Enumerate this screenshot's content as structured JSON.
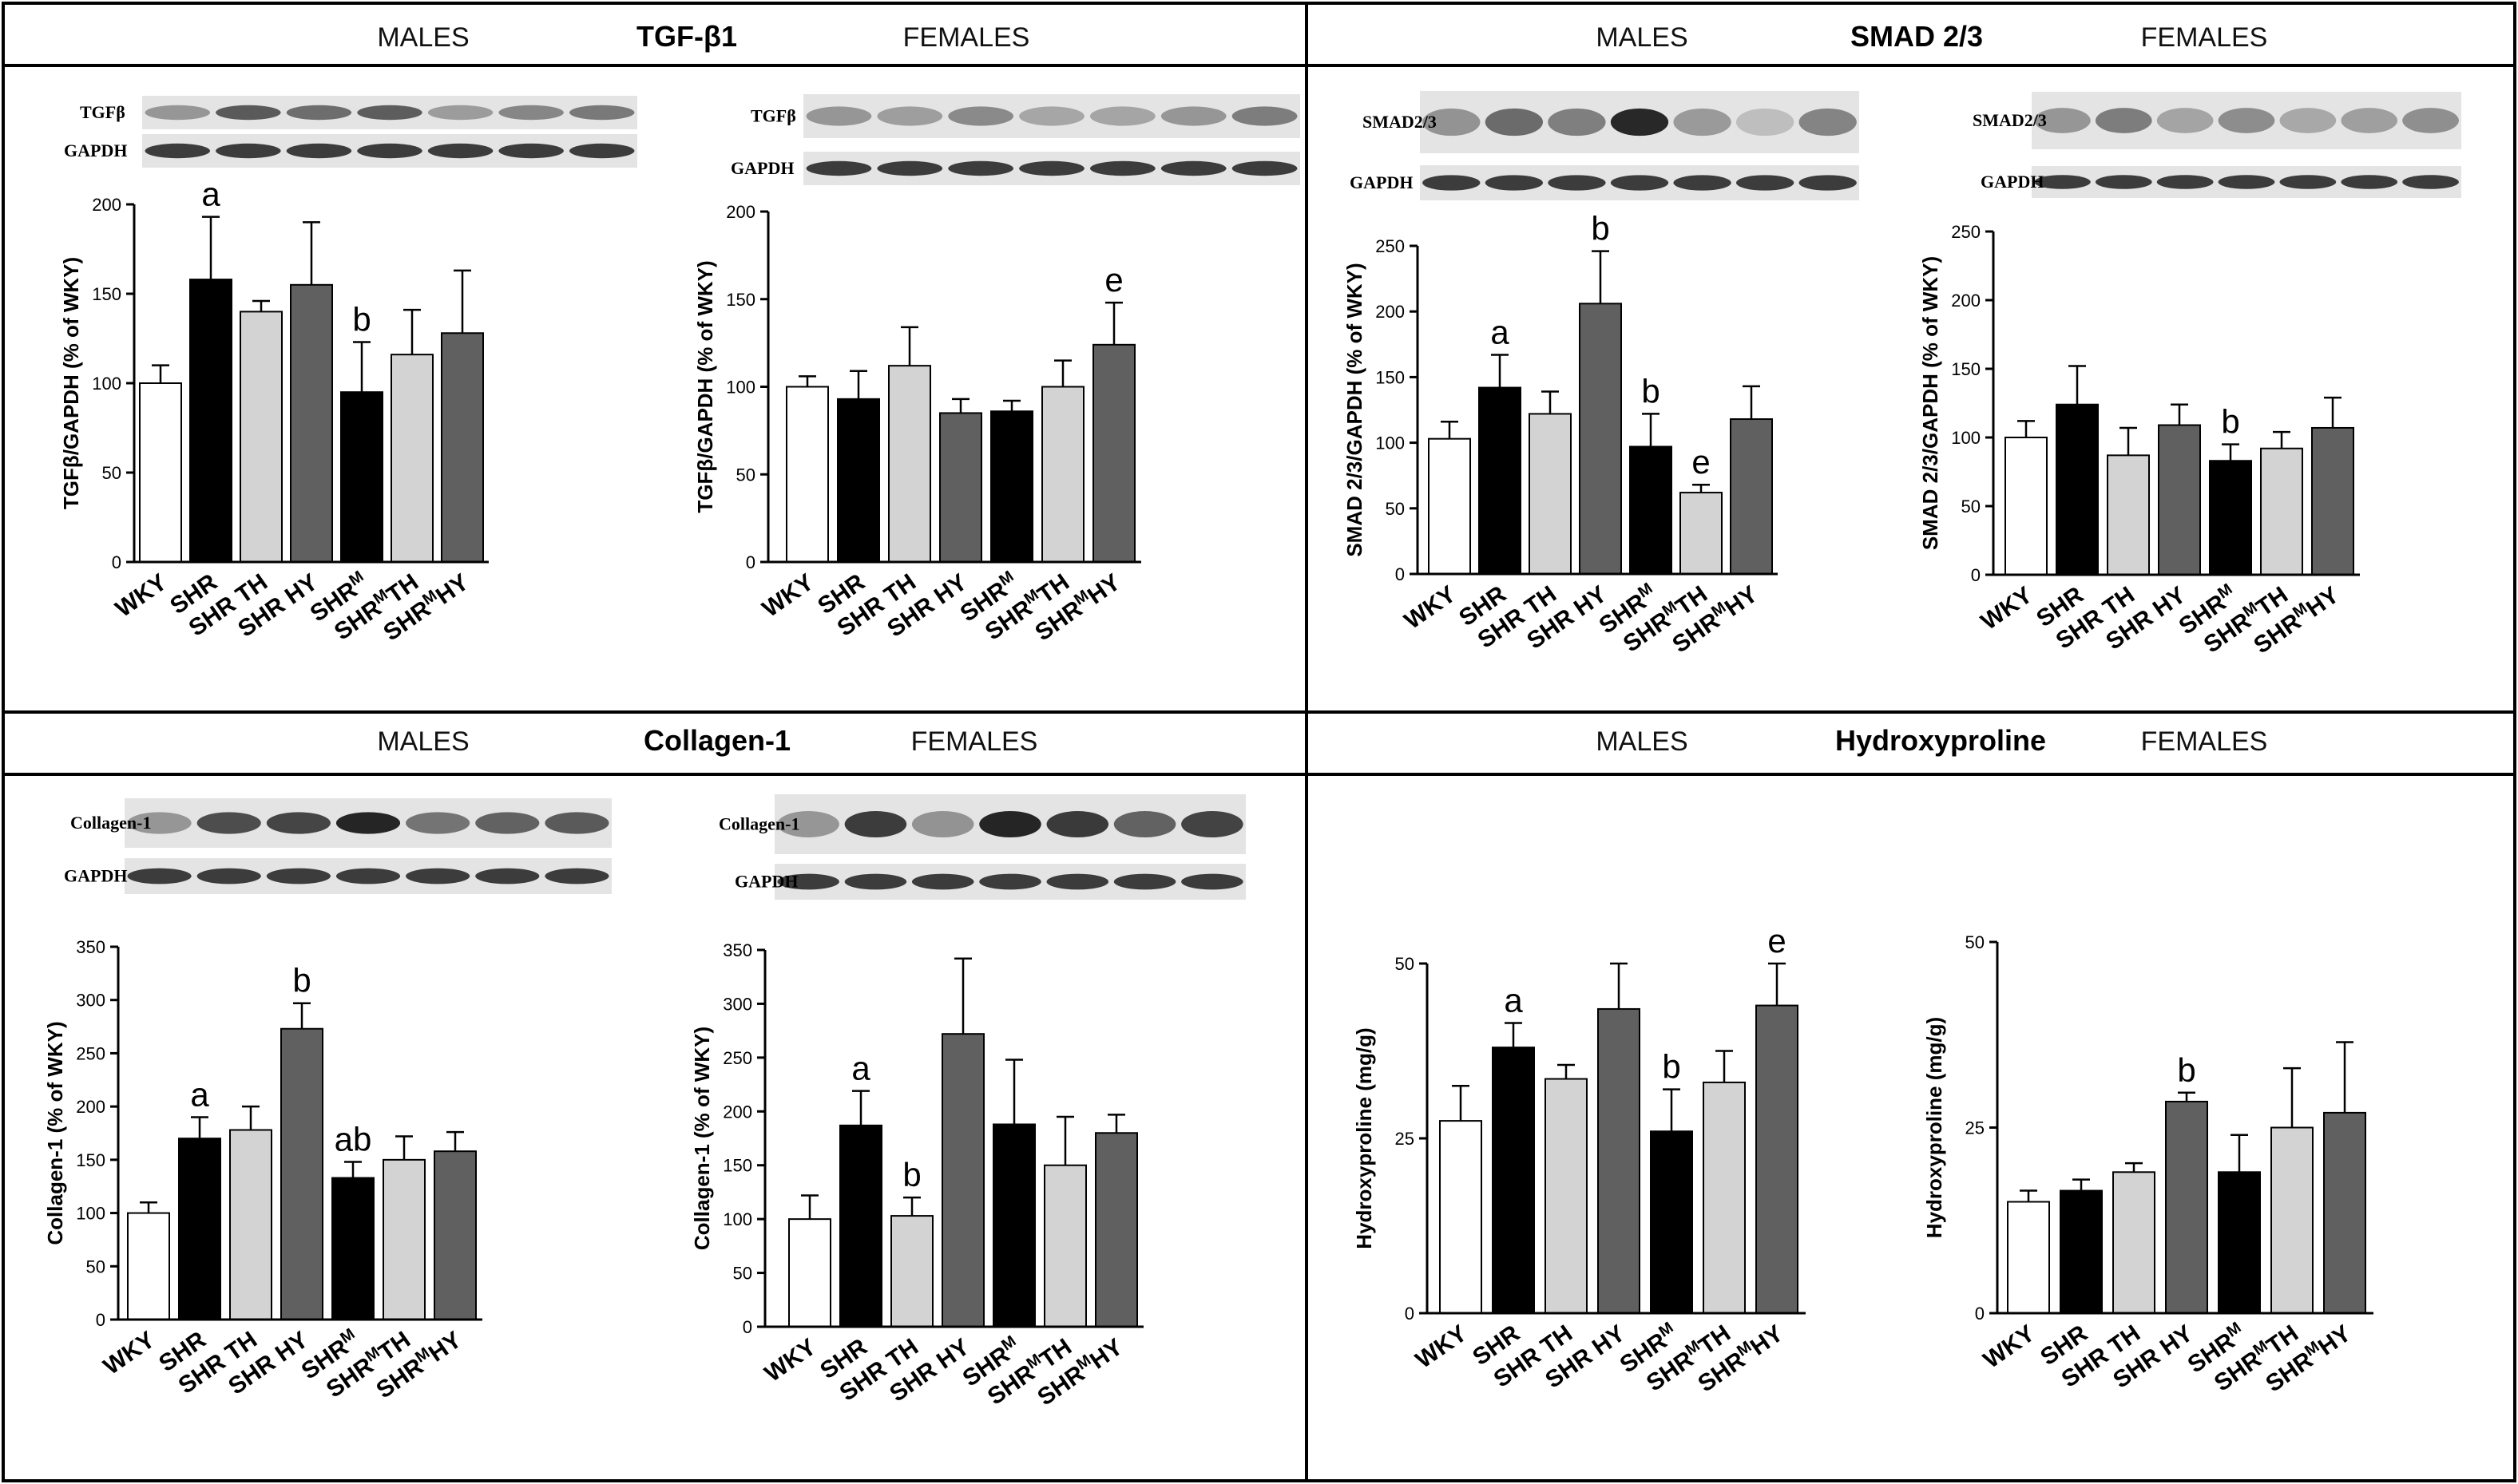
{
  "colors": {
    "WKY": "#ffffff",
    "SHR": "#000000",
    "SHR TH": "#d3d3d3",
    "SHR HY": "#606060",
    "SHRM": "#000000",
    "SHRMTH": "#d3d3d3",
    "SHRMHY": "#606060"
  },
  "panels": [
    {
      "title": "TGF-β1",
      "male_label": "MALES",
      "female_label": "FEMALES"
    },
    {
      "title": "SMAD 2/3",
      "male_label": "MALES",
      "female_label": "FEMALES"
    },
    {
      "title": "Collagen-1",
      "male_label": "MALES",
      "female_label": "FEMALES"
    },
    {
      "title": "Hydroxyproline",
      "male_label": "MALES",
      "female_label": "FEMALES"
    }
  ],
  "chart_data": [
    {
      "type": "bar",
      "panel": "TGF-β1",
      "sex": "MALES",
      "blot_labels": [
        "TGFβ",
        "GAPDH"
      ],
      "ylabel": "TGFβ/GAPDH (% of WKY)",
      "ylim": [
        0,
        200
      ],
      "yticks": [
        0,
        50,
        100,
        150,
        200
      ],
      "categories": [
        {
          "base": "WKY",
          "sup": "",
          "post": ""
        },
        {
          "base": "SHR",
          "sup": "",
          "post": ""
        },
        {
          "base": "SHR TH",
          "sup": "",
          "post": ""
        },
        {
          "base": "SHR HY",
          "sup": "",
          "post": ""
        },
        {
          "base": "SHR",
          "sup": "M",
          "post": ""
        },
        {
          "base": "SHR",
          "sup": "M",
          "post": "TH"
        },
        {
          "base": "SHR",
          "sup": "M",
          "post": "HY"
        }
      ],
      "values": [
        100,
        158,
        140,
        155,
        95,
        116,
        128
      ],
      "errors": [
        10,
        35,
        6,
        35,
        28,
        25,
        35
      ],
      "annotations": [
        "",
        "a",
        "",
        "",
        "b",
        "",
        ""
      ]
    },
    {
      "type": "bar",
      "panel": "TGF-β1",
      "sex": "FEMALES",
      "blot_labels": [
        "TGFβ",
        "GAPDH"
      ],
      "ylabel": "TGFβ/GAPDH (% of WKY)",
      "ylim": [
        0,
        200
      ],
      "yticks": [
        0,
        50,
        100,
        150,
        200
      ],
      "categories": [
        {
          "base": "WKY",
          "sup": "",
          "post": ""
        },
        {
          "base": "SHR",
          "sup": "",
          "post": ""
        },
        {
          "base": "SHR TH",
          "sup": "",
          "post": ""
        },
        {
          "base": "SHR HY",
          "sup": "",
          "post": ""
        },
        {
          "base": "SHR",
          "sup": "M",
          "post": ""
        },
        {
          "base": "SHR",
          "sup": "M",
          "post": "TH"
        },
        {
          "base": "SHR",
          "sup": "M",
          "post": "HY"
        }
      ],
      "values": [
        100,
        93,
        112,
        85,
        86,
        100,
        124
      ],
      "errors": [
        6,
        16,
        22,
        8,
        6,
        15,
        24
      ],
      "annotations": [
        "",
        "",
        "",
        "",
        "",
        "",
        "e"
      ]
    },
    {
      "type": "bar",
      "panel": "SMAD 2/3",
      "sex": "MALES",
      "blot_labels": [
        "SMAD2/3",
        "GAPDH"
      ],
      "ylabel": "SMAD 2/3/GAPDH (% of WKY)",
      "ylim": [
        0,
        250
      ],
      "yticks": [
        0,
        50,
        100,
        150,
        200,
        250
      ],
      "categories": [
        {
          "base": "WKY",
          "sup": "",
          "post": ""
        },
        {
          "base": "SHR",
          "sup": "",
          "post": ""
        },
        {
          "base": "SHR TH",
          "sup": "",
          "post": ""
        },
        {
          "base": "SHR HY",
          "sup": "",
          "post": ""
        },
        {
          "base": "SHR",
          "sup": "M",
          "post": ""
        },
        {
          "base": "SHR",
          "sup": "M",
          "post": "TH"
        },
        {
          "base": "SHR",
          "sup": "M",
          "post": "HY"
        }
      ],
      "values": [
        103,
        142,
        122,
        206,
        97,
        62,
        118
      ],
      "errors": [
        13,
        25,
        17,
        40,
        25,
        6,
        25
      ],
      "annotations": [
        "",
        "a",
        "",
        "b",
        "b",
        "e",
        ""
      ]
    },
    {
      "type": "bar",
      "panel": "SMAD 2/3",
      "sex": "FEMALES",
      "blot_labels": [
        "SMAD2/3",
        "GAPDH"
      ],
      "ylabel": "SMAD 2/3/GAPDH (% of WKY)",
      "ylim": [
        0,
        250
      ],
      "yticks": [
        0,
        50,
        100,
        150,
        200,
        250
      ],
      "categories": [
        {
          "base": "WKY",
          "sup": "",
          "post": ""
        },
        {
          "base": "SHR",
          "sup": "",
          "post": ""
        },
        {
          "base": "SHR TH",
          "sup": "",
          "post": ""
        },
        {
          "base": "SHR HY",
          "sup": "",
          "post": ""
        },
        {
          "base": "SHR",
          "sup": "M",
          "post": ""
        },
        {
          "base": "SHR",
          "sup": "M",
          "post": "TH"
        },
        {
          "base": "SHR",
          "sup": "M",
          "post": "HY"
        }
      ],
      "values": [
        100,
        124,
        87,
        109,
        83,
        92,
        107
      ],
      "errors": [
        12,
        28,
        20,
        15,
        12,
        12,
        22
      ],
      "annotations": [
        "",
        "",
        "",
        "",
        "b",
        "",
        ""
      ]
    },
    {
      "type": "bar",
      "panel": "Collagen-1",
      "sex": "MALES",
      "blot_labels": [
        "Collagen-1",
        "GAPDH"
      ],
      "ylabel": "Collagen-1 (% of WKY)",
      "ylim": [
        0,
        350
      ],
      "yticks": [
        0,
        50,
        100,
        150,
        200,
        250,
        300,
        350
      ],
      "categories": [
        {
          "base": "WKY",
          "sup": "",
          "post": ""
        },
        {
          "base": "SHR",
          "sup": "",
          "post": ""
        },
        {
          "base": "SHR TH",
          "sup": "",
          "post": ""
        },
        {
          "base": "SHR HY",
          "sup": "",
          "post": ""
        },
        {
          "base": "SHR",
          "sup": "M",
          "post": ""
        },
        {
          "base": "SHR",
          "sup": "M",
          "post": "TH"
        },
        {
          "base": "SHR",
          "sup": "M",
          "post": "HY"
        }
      ],
      "values": [
        100,
        170,
        178,
        273,
        133,
        150,
        158
      ],
      "errors": [
        10,
        20,
        22,
        24,
        15,
        22,
        18
      ],
      "annotations": [
        "",
        "a",
        "",
        "b",
        "ab",
        "",
        ""
      ]
    },
    {
      "type": "bar",
      "panel": "Collagen-1",
      "sex": "FEMALES",
      "blot_labels": [
        "Collagen-1",
        "GAPDH"
      ],
      "ylabel": "Collagen-1 (% of WKY)",
      "ylim": [
        0,
        350
      ],
      "yticks": [
        0,
        50,
        100,
        150,
        200,
        250,
        300,
        350
      ],
      "categories": [
        {
          "base": "WKY",
          "sup": "",
          "post": ""
        },
        {
          "base": "SHR",
          "sup": "",
          "post": ""
        },
        {
          "base": "SHR TH",
          "sup": "",
          "post": ""
        },
        {
          "base": "SHR HY",
          "sup": "",
          "post": ""
        },
        {
          "base": "SHR",
          "sup": "M",
          "post": ""
        },
        {
          "base": "SHR",
          "sup": "M",
          "post": "TH"
        },
        {
          "base": "SHR",
          "sup": "M",
          "post": "HY"
        }
      ],
      "values": [
        100,
        187,
        103,
        272,
        188,
        150,
        180
      ],
      "errors": [
        22,
        32,
        17,
        70,
        60,
        45,
        17
      ],
      "annotations": [
        "",
        "a",
        "b",
        "",
        "",
        "",
        ""
      ]
    },
    {
      "type": "bar",
      "panel": "Hydroxyproline",
      "sex": "MALES",
      "blot_labels": [],
      "ylabel": "Hydroxyproline (mg/g)",
      "ylim": [
        0,
        50
      ],
      "yticks": [
        0,
        25,
        50
      ],
      "categories": [
        {
          "base": "WKY",
          "sup": "",
          "post": ""
        },
        {
          "base": "SHR",
          "sup": "",
          "post": ""
        },
        {
          "base": "SHR TH",
          "sup": "",
          "post": ""
        },
        {
          "base": "SHR HY",
          "sup": "",
          "post": ""
        },
        {
          "base": "SHR",
          "sup": "M",
          "post": ""
        },
        {
          "base": "SHR",
          "sup": "M",
          "post": "TH"
        },
        {
          "base": "SHR",
          "sup": "M",
          "post": "HY"
        }
      ],
      "values": [
        27.5,
        38,
        33.5,
        43.5,
        26,
        33,
        44
      ],
      "errors": [
        5,
        3.5,
        2,
        6.5,
        6,
        4.5,
        6
      ],
      "annotations": [
        "",
        "a",
        "",
        "",
        "b",
        "",
        "e"
      ]
    },
    {
      "type": "bar",
      "panel": "Hydroxyproline",
      "sex": "FEMALES",
      "blot_labels": [],
      "ylabel": "Hydroxyproline (mg/g)",
      "ylim": [
        0,
        50
      ],
      "yticks": [
        0,
        25,
        50
      ],
      "categories": [
        {
          "base": "WKY",
          "sup": "",
          "post": ""
        },
        {
          "base": "SHR",
          "sup": "",
          "post": ""
        },
        {
          "base": "SHR TH",
          "sup": "",
          "post": ""
        },
        {
          "base": "SHR HY",
          "sup": "",
          "post": ""
        },
        {
          "base": "SHR",
          "sup": "M",
          "post": ""
        },
        {
          "base": "SHR",
          "sup": "M",
          "post": "TH"
        },
        {
          "base": "SHR",
          "sup": "M",
          "post": "HY"
        }
      ],
      "values": [
        15,
        16.5,
        19,
        28.5,
        19,
        25,
        27
      ],
      "errors": [
        1.5,
        1.5,
        1.2,
        1.2,
        5,
        8,
        9.5
      ],
      "annotations": [
        "",
        "",
        "",
        "b",
        "",
        "",
        ""
      ]
    }
  ]
}
